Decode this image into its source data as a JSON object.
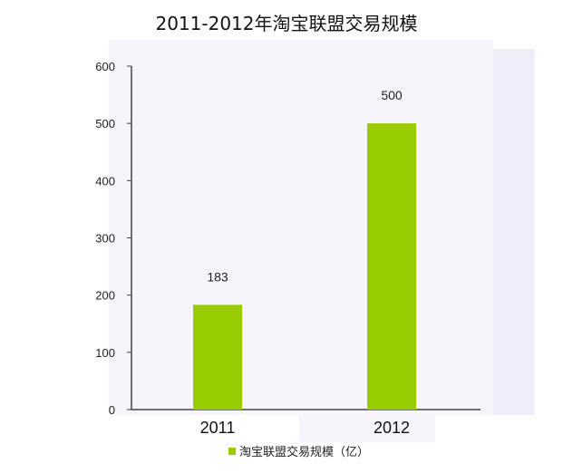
{
  "chart_data": {
    "type": "bar",
    "title": "2011-2012年淘宝联盟交易规模",
    "categories": [
      "2011",
      "2012"
    ],
    "series": [
      {
        "name": "淘宝联盟交易规模（亿）",
        "values": [
          183,
          500
        ]
      }
    ],
    "data_labels": [
      "183",
      "500"
    ],
    "ylim": [
      0,
      600
    ],
    "yticks": [
      0,
      100,
      200,
      300,
      400,
      500,
      600
    ],
    "ytick_labels": [
      "0",
      "100",
      "200",
      "300",
      "400",
      "500",
      "600"
    ],
    "grid": false,
    "legend_position": "bottom",
    "colors": {
      "bar": "#99cc00",
      "axis": "#444444",
      "plot_background": "#f4f4fb"
    }
  }
}
